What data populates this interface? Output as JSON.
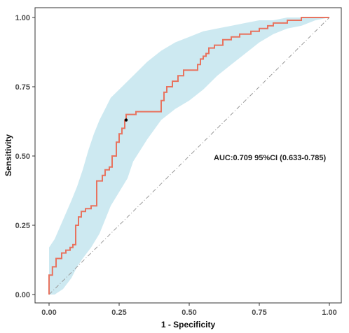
{
  "chart_data": {
    "type": "line",
    "xlabel": "1 - Specificity",
    "ylabel": "Sensitivity",
    "xlim": [
      0,
      1
    ],
    "ylim": [
      0,
      1
    ],
    "x_ticks": [
      "0.00",
      "0.25",
      "0.50",
      "0.75",
      "1.00"
    ],
    "y_ticks": [
      "0.00",
      "0.25",
      "0.50",
      "0.75",
      "1.00"
    ],
    "annotation": "AUC:0.709 95%CI (0.633-0.785)",
    "grid": false,
    "colors": {
      "roc_line": "#e8735f",
      "ci_band": "#cde9f1",
      "reference_line": "#9a9a9a",
      "optimal_point": "#000000",
      "frame": "#333333"
    },
    "optimal_point": {
      "x": 0.275,
      "y": 0.63
    },
    "series": [
      {
        "role": "roc",
        "x": [
          0,
          0,
          0.012,
          0.012,
          0.025,
          0.025,
          0.045,
          0.045,
          0.06,
          0.06,
          0.075,
          0.075,
          0.085,
          0.085,
          0.095,
          0.095,
          0.105,
          0.105,
          0.115,
          0.115,
          0.13,
          0.13,
          0.15,
          0.15,
          0.17,
          0.17,
          0.19,
          0.19,
          0.2,
          0.2,
          0.215,
          0.215,
          0.225,
          0.225,
          0.24,
          0.24,
          0.25,
          0.25,
          0.26,
          0.26,
          0.27,
          0.27,
          0.275,
          0.275,
          0.31,
          0.31,
          0.33,
          0.33,
          0.4,
          0.4,
          0.41,
          0.41,
          0.42,
          0.42,
          0.44,
          0.44,
          0.46,
          0.46,
          0.48,
          0.48,
          0.53,
          0.53,
          0.54,
          0.54,
          0.55,
          0.55,
          0.56,
          0.56,
          0.57,
          0.57,
          0.59,
          0.59,
          0.62,
          0.62,
          0.65,
          0.65,
          0.68,
          0.68,
          0.72,
          0.72,
          0.75,
          0.75,
          0.78,
          0.78,
          0.8,
          0.8,
          0.85,
          0.85,
          0.9,
          0.9,
          0.95,
          0.95,
          1.0
        ],
        "y": [
          0,
          0.07,
          0.07,
          0.1,
          0.1,
          0.13,
          0.13,
          0.15,
          0.15,
          0.16,
          0.16,
          0.17,
          0.17,
          0.18,
          0.18,
          0.25,
          0.25,
          0.28,
          0.28,
          0.3,
          0.3,
          0.31,
          0.31,
          0.32,
          0.32,
          0.41,
          0.41,
          0.43,
          0.43,
          0.45,
          0.45,
          0.46,
          0.46,
          0.5,
          0.5,
          0.55,
          0.55,
          0.58,
          0.58,
          0.6,
          0.6,
          0.63,
          0.63,
          0.65,
          0.65,
          0.66,
          0.66,
          0.66,
          0.66,
          0.7,
          0.7,
          0.73,
          0.73,
          0.75,
          0.75,
          0.77,
          0.77,
          0.79,
          0.79,
          0.81,
          0.81,
          0.83,
          0.83,
          0.85,
          0.85,
          0.86,
          0.86,
          0.87,
          0.87,
          0.89,
          0.89,
          0.9,
          0.9,
          0.92,
          0.92,
          0.93,
          0.93,
          0.94,
          0.94,
          0.95,
          0.95,
          0.96,
          0.96,
          0.97,
          0.97,
          0.98,
          0.98,
          0.99,
          0.99,
          1.0,
          1.0,
          1.0,
          1.0
        ]
      },
      {
        "role": "ci_upper",
        "x": [
          0,
          0,
          0.02,
          0.05,
          0.08,
          0.1,
          0.12,
          0.14,
          0.16,
          0.18,
          0.2,
          0.22,
          0.25,
          0.3,
          0.35,
          0.4,
          0.45,
          0.5,
          0.55,
          0.6,
          0.65,
          0.7,
          0.75,
          0.8,
          0.85,
          0.9,
          0.95,
          1.0
        ],
        "y": [
          0,
          0.17,
          0.2,
          0.27,
          0.34,
          0.39,
          0.45,
          0.52,
          0.58,
          0.63,
          0.67,
          0.71,
          0.74,
          0.79,
          0.84,
          0.88,
          0.91,
          0.93,
          0.95,
          0.96,
          0.97,
          0.98,
          0.99,
          0.99,
          1.0,
          1.0,
          1.0,
          1.0
        ]
      },
      {
        "role": "ci_lower",
        "x": [
          0,
          0.02,
          0.05,
          0.08,
          0.1,
          0.12,
          0.15,
          0.18,
          0.2,
          0.22,
          0.25,
          0.28,
          0.3,
          0.35,
          0.4,
          0.45,
          0.5,
          0.55,
          0.6,
          0.65,
          0.7,
          0.75,
          0.8,
          0.85,
          0.9,
          0.95,
          1.0
        ],
        "y": [
          0,
          0.0,
          0.02,
          0.06,
          0.1,
          0.13,
          0.17,
          0.22,
          0.27,
          0.32,
          0.37,
          0.42,
          0.48,
          0.56,
          0.63,
          0.67,
          0.7,
          0.74,
          0.79,
          0.83,
          0.87,
          0.91,
          0.94,
          0.96,
          0.97,
          0.99,
          1.0
        ]
      }
    ]
  }
}
